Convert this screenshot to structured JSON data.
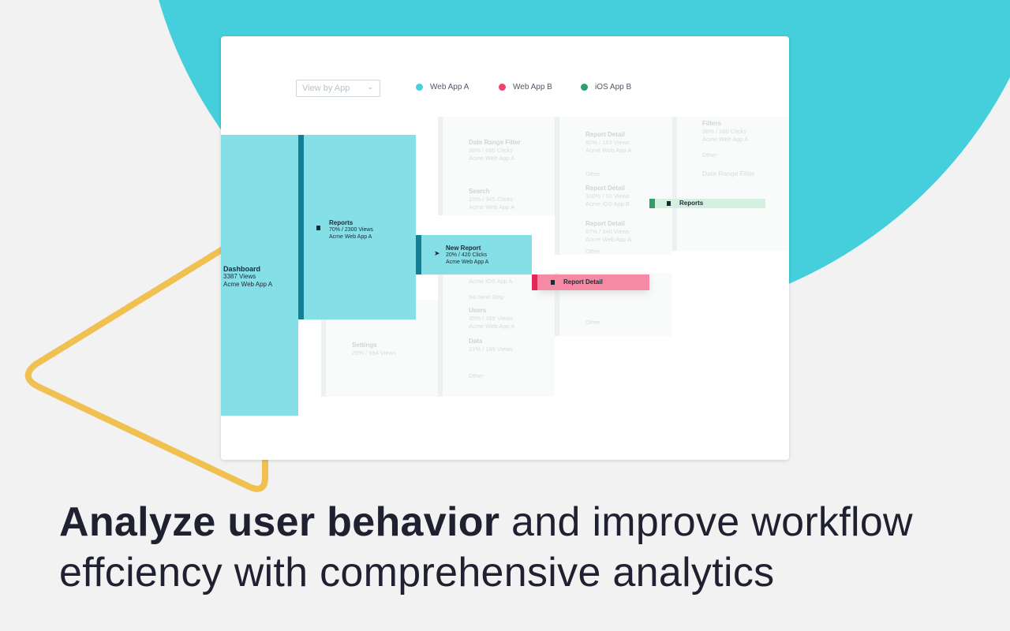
{
  "colors": {
    "web_app_a": "#45cedc",
    "web_app_b": "#f0426e",
    "ios_app_b": "#2e9e6a",
    "accent_triangle": "#f0c050"
  },
  "toolbar": {
    "view_select": "View by App",
    "legend": [
      {
        "label": "Web App A",
        "color": "#45cedc"
      },
      {
        "label": "Web App B",
        "color": "#f0426e"
      },
      {
        "label": "iOS App B",
        "color": "#2e9e6a"
      }
    ]
  },
  "flow": {
    "dashboard": {
      "title": "Dashboard",
      "stat": "3387 Views",
      "app": "Acme Web App A"
    },
    "reports": {
      "title": "Reports",
      "stat": "70% / 2300 Views",
      "app": "Acme Web App A"
    },
    "new_report": {
      "title": "New Report",
      "stat": "20% / 420 Clicks",
      "app": "Acme Web App A"
    },
    "report_detail": {
      "title": "Report Detail"
    },
    "reports_ios": {
      "title": "Reports"
    }
  },
  "ghost": {
    "date_range": {
      "title": "Date Range Filter",
      "stat": "30% / 690 Clicks",
      "app": "Acme Web App A"
    },
    "search": {
      "title": "Search",
      "stat": "15% / 345 Clicks",
      "app": "Acme Web App A"
    },
    "ios_app": "Acme iOS App A",
    "no_next": "No Next Step",
    "users": {
      "title": "Users",
      "stat": "35% / 399 Views",
      "app": "Acme Web App A"
    },
    "data": {
      "title": "Data",
      "stat": "21% / 189 Views"
    },
    "other": "Other",
    "settings": {
      "title": "Settings",
      "stat": "25% / 994 Views"
    },
    "rd1": {
      "title": "Report Detail",
      "stat": "80% / 153 Views",
      "app": "Acme Web App A"
    },
    "rd2": {
      "title": "Report Detail",
      "stat": "100% / 10 Views",
      "app": "Acme iOS App B"
    },
    "rd3": {
      "title": "Report Detail",
      "stat": "67% / 340 Views",
      "app": "Acme Web App A"
    },
    "filters": {
      "title": "Filters",
      "stat": "56% / 280 Clicks",
      "app": "Acme Web App A"
    },
    "drf": "Date Range Filter"
  },
  "headline": {
    "bold": "Analyze user behavior",
    "rest": " and improve workflow",
    "line2": "effciency with comprehensive analytics"
  }
}
